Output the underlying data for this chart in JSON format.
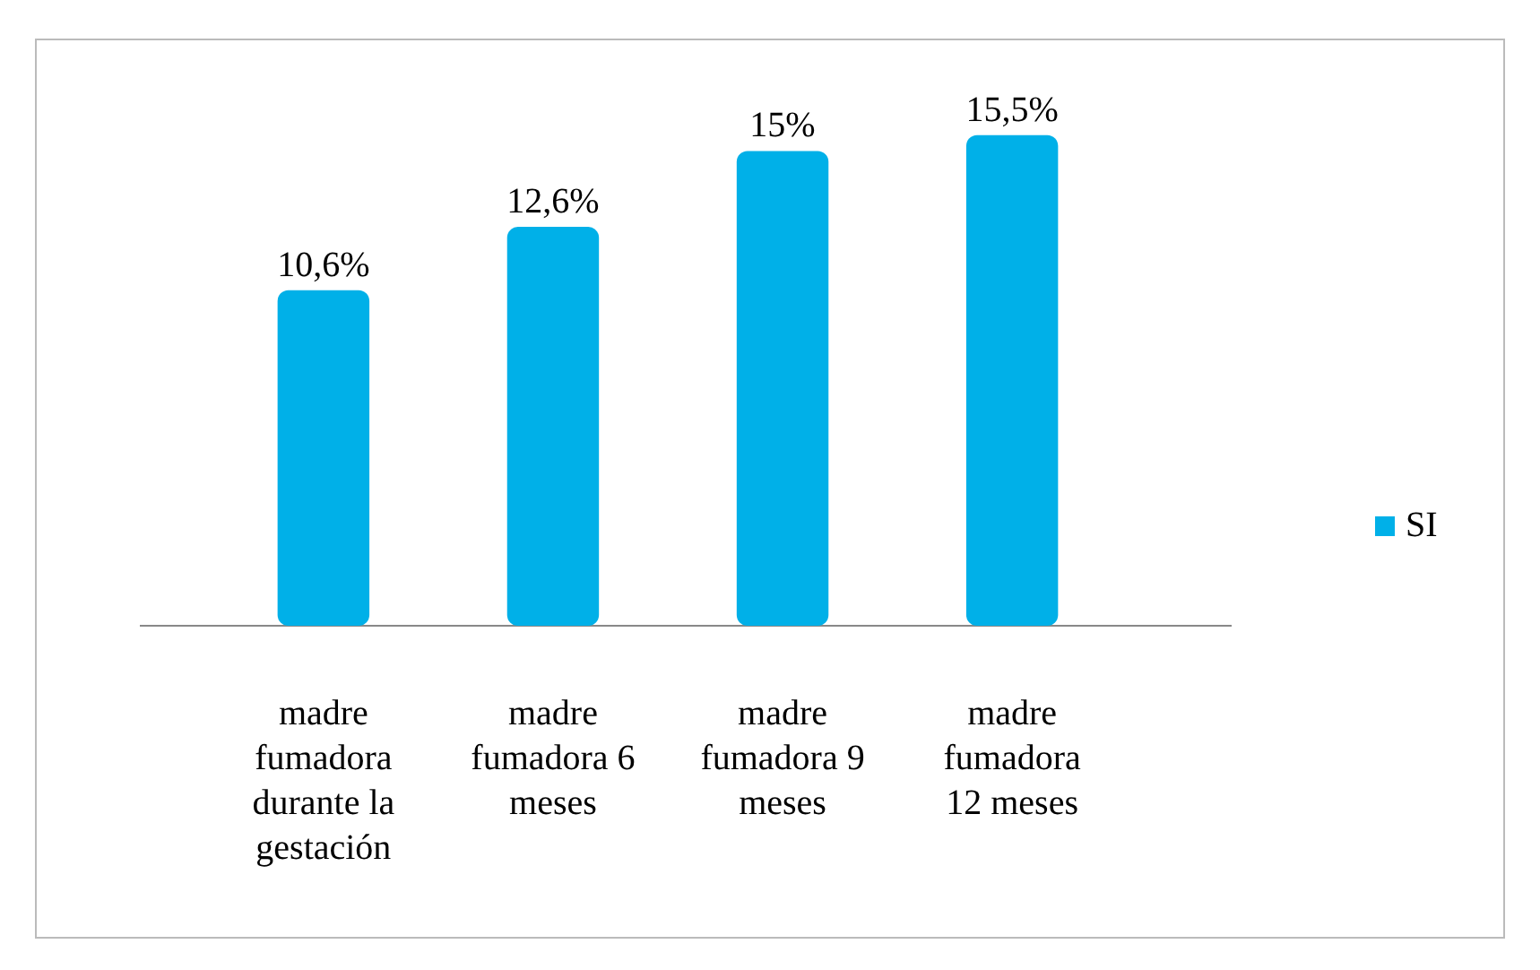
{
  "chart_data": {
    "type": "bar",
    "categories": [
      "madre fumadora durante la gestación",
      "madre fumadora 6 meses",
      "madre fumadora 9 meses",
      "madre fumadora 12 meses"
    ],
    "series": [
      {
        "name": "SI",
        "color": "#00b0e8",
        "values": [
          10.6,
          12.6,
          15,
          15.5
        ],
        "value_labels": [
          "10,6%",
          "12,6%",
          "15%",
          "15,5%"
        ]
      }
    ],
    "legend": "right"
  }
}
